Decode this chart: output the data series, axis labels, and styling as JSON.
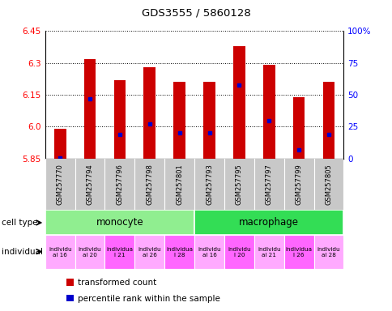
{
  "title": "GDS3555 / 5860128",
  "samples": [
    "GSM257770",
    "GSM257794",
    "GSM257796",
    "GSM257798",
    "GSM257801",
    "GSM257793",
    "GSM257795",
    "GSM257797",
    "GSM257799",
    "GSM257805"
  ],
  "transformed_counts": [
    5.99,
    6.32,
    6.22,
    6.28,
    6.21,
    6.21,
    6.38,
    6.29,
    6.14,
    6.21
  ],
  "percentile_ranks": [
    0.5,
    47,
    19,
    27,
    20,
    20,
    58,
    30,
    7,
    19
  ],
  "ymin": 5.85,
  "ymax": 6.45,
  "yticks": [
    5.85,
    6.0,
    6.15,
    6.3,
    6.45
  ],
  "right_yticks": [
    0,
    25,
    50,
    75,
    100
  ],
  "cell_types": [
    {
      "label": "monocyte",
      "start": 0,
      "end": 5,
      "color": "#90EE90"
    },
    {
      "label": "macrophage",
      "start": 5,
      "end": 10,
      "color": "#33DD55"
    }
  ],
  "ind_labels": [
    "individu\nal 16",
    "individu\nal 20",
    "individua\nl 21",
    "individu\nal 26",
    "individua\nl 28",
    "individu\nal 16",
    "individu\nl 20",
    "individu\nal 21",
    "individua\nl 26",
    "individu\nal 28"
  ],
  "ind_colors": [
    "#FFAAFF",
    "#FFAAFF",
    "#FF66FF",
    "#FFAAFF",
    "#FF66FF",
    "#FFAAFF",
    "#FF66FF",
    "#FFAAFF",
    "#FF66FF",
    "#FFAAFF"
  ],
  "bar_color": "#CC0000",
  "dot_color": "#0000CC",
  "bar_width": 0.4,
  "legend_items": [
    {
      "color": "#CC0000",
      "label": "transformed count"
    },
    {
      "color": "#0000CC",
      "label": "percentile rank within the sample"
    }
  ]
}
